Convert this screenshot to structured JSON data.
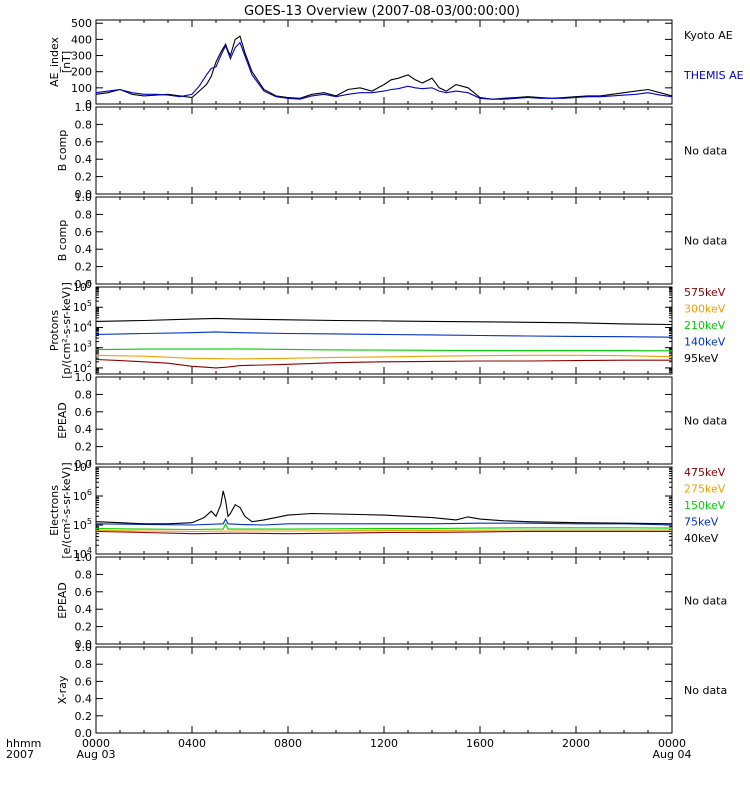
{
  "title": "GOES-13 Overview (2007-08-03/00:00:00)",
  "xaxis": {
    "corner_top": "hhmm",
    "corner_bottom": "2007",
    "ticks": [
      {
        "hour": 0,
        "label": "0000",
        "sub": "Aug 03"
      },
      {
        "hour": 4,
        "label": "0400",
        "sub": ""
      },
      {
        "hour": 8,
        "label": "0800",
        "sub": ""
      },
      {
        "hour": 12,
        "label": "1200",
        "sub": ""
      },
      {
        "hour": 16,
        "label": "1600",
        "sub": ""
      },
      {
        "hour": 20,
        "label": "2000",
        "sub": ""
      },
      {
        "hour": 24,
        "label": "0000",
        "sub": "Aug 04"
      }
    ],
    "range_hours": [
      0,
      24
    ]
  },
  "chart_data": [
    {
      "id": "ae",
      "type": "line",
      "ylabel": [
        "AE_index",
        "[nT]"
      ],
      "ylim": [
        0,
        520
      ],
      "yscale": "linear",
      "yticks": [
        0,
        100,
        200,
        300,
        400,
        500
      ],
      "series": [
        {
          "name": "Kyoto AE",
          "color": "#000000",
          "x": [
            0,
            0.5,
            1,
            1.5,
            2,
            2.5,
            3,
            3.5,
            4,
            4.3,
            4.6,
            4.8,
            5.0,
            5.2,
            5.4,
            5.5,
            5.6,
            5.8,
            6.0,
            6.2,
            6.5,
            7,
            7.5,
            8,
            8.5,
            9,
            9.5,
            10,
            10.5,
            11,
            11.5,
            12,
            12.3,
            12.6,
            13,
            13.3,
            13.6,
            14,
            14.3,
            14.6,
            15,
            15.5,
            16,
            16.5,
            17,
            17.5,
            18,
            18.5,
            19,
            19.5,
            20,
            20.5,
            21,
            21.5,
            22,
            22.5,
            23,
            23.5,
            24
          ],
          "values": [
            60,
            70,
            90,
            60,
            50,
            55,
            60,
            50,
            40,
            80,
            120,
            170,
            260,
            320,
            370,
            330,
            300,
            400,
            420,
            320,
            200,
            90,
            50,
            40,
            35,
            60,
            70,
            50,
            90,
            100,
            80,
            120,
            150,
            160,
            180,
            150,
            130,
            160,
            100,
            80,
            120,
            100,
            40,
            30,
            35,
            40,
            45,
            40,
            35,
            40,
            45,
            50,
            50,
            60,
            70,
            80,
            90,
            70,
            50
          ]
        },
        {
          "name": "THEMIS AE",
          "color": "#0000c8",
          "x": [
            0,
            0.5,
            1,
            1.5,
            2,
            2.5,
            3,
            3.5,
            4,
            4.3,
            4.6,
            4.8,
            5.0,
            5.2,
            5.4,
            5.5,
            5.6,
            5.8,
            6.0,
            6.2,
            6.5,
            7,
            7.5,
            8,
            8.5,
            9,
            9.5,
            10,
            10.5,
            11,
            11.5,
            12,
            12.3,
            12.6,
            13,
            13.3,
            13.6,
            14,
            14.3,
            14.6,
            15,
            15.5,
            16,
            16.5,
            17,
            17.5,
            18,
            18.5,
            19,
            19.5,
            20,
            20.5,
            21,
            21.5,
            22,
            22.5,
            23,
            23.5,
            24
          ],
          "values": [
            70,
            80,
            90,
            70,
            60,
            60,
            55,
            45,
            60,
            110,
            180,
            220,
            230,
            300,
            360,
            320,
            280,
            350,
            380,
            300,
            180,
            80,
            45,
            35,
            30,
            50,
            60,
            45,
            60,
            70,
            70,
            80,
            90,
            95,
            110,
            100,
            95,
            100,
            80,
            70,
            80,
            70,
            35,
            30,
            30,
            35,
            40,
            35,
            35,
            35,
            40,
            45,
            45,
            50,
            55,
            60,
            70,
            55,
            45
          ]
        }
      ],
      "status": "",
      "legend_entries": [
        "Kyoto AE",
        "THEMIS AE"
      ]
    },
    {
      "id": "bcomp1",
      "type": "line",
      "ylabel": [
        "B comp"
      ],
      "ylim": [
        0,
        1
      ],
      "yscale": "linear",
      "yticks": [
        0.0,
        0.2,
        0.4,
        0.6,
        0.8,
        1.0
      ],
      "series": [],
      "status": "No data"
    },
    {
      "id": "bcomp2",
      "type": "line",
      "ylabel": [
        "B comp"
      ],
      "ylim": [
        0,
        1
      ],
      "yscale": "linear",
      "yticks": [
        0.0,
        0.2,
        0.4,
        0.6,
        0.8,
        1.0
      ],
      "series": [],
      "status": "No data"
    },
    {
      "id": "protons",
      "type": "line",
      "ylabel": [
        "Protons",
        "[p/(cm²-s-sr-keV)]"
      ],
      "ylim": [
        50,
        1000000
      ],
      "yscale": "log",
      "yticks": [
        100,
        1000,
        10000,
        100000,
        1000000
      ],
      "series": [
        {
          "name": "575keV",
          "color": "#8b0000",
          "x": [
            0,
            1,
            2,
            3,
            4,
            4.5,
            5,
            5.5,
            6,
            7,
            8,
            10,
            12,
            14,
            16,
            18,
            20,
            22,
            24
          ],
          "values": [
            260,
            230,
            200,
            170,
            120,
            110,
            100,
            110,
            130,
            140,
            150,
            180,
            200,
            210,
            220,
            220,
            230,
            240,
            240
          ]
        },
        {
          "name": "300keV",
          "color": "#f0a000",
          "x": [
            0,
            2,
            4,
            6,
            8,
            10,
            12,
            14,
            16,
            18,
            20,
            22,
            24
          ],
          "values": [
            420,
            380,
            300,
            280,
            300,
            330,
            350,
            380,
            400,
            420,
            420,
            400,
            360
          ]
        },
        {
          "name": "210keV",
          "color": "#00d000",
          "x": [
            0,
            2,
            4,
            6,
            8,
            10,
            12,
            14,
            16,
            18,
            20,
            22,
            24
          ],
          "values": [
            800,
            850,
            850,
            870,
            820,
            780,
            760,
            740,
            720,
            720,
            720,
            720,
            700
          ]
        },
        {
          "name": "140keV",
          "color": "#0030c0",
          "x": [
            0,
            2,
            4,
            5,
            6,
            8,
            10,
            12,
            14,
            16,
            18,
            20,
            22,
            24
          ],
          "values": [
            4500,
            5000,
            5500,
            6000,
            5500,
            5000,
            4800,
            4500,
            4300,
            4000,
            3800,
            3600,
            3500,
            3300
          ]
        },
        {
          "name": "95keV",
          "color": "#000000",
          "x": [
            0,
            2,
            4,
            5,
            6,
            8,
            10,
            12,
            14,
            16,
            18,
            20,
            22,
            24
          ],
          "values": [
            20000,
            22000,
            26000,
            28000,
            26000,
            24000,
            22000,
            21000,
            20000,
            19000,
            18000,
            17000,
            15000,
            14000
          ]
        }
      ],
      "status": "",
      "legend_entries": [
        "575keV",
        "300keV",
        "210keV",
        "140keV",
        "95keV"
      ]
    },
    {
      "id": "epead1",
      "type": "line",
      "ylabel": [
        "EPEAD"
      ],
      "ylim": [
        0,
        1
      ],
      "yscale": "linear",
      "yticks": [
        0.0,
        0.2,
        0.4,
        0.6,
        0.8,
        1.0
      ],
      "series": [],
      "status": "No data"
    },
    {
      "id": "electrons",
      "type": "line",
      "ylabel": [
        "Electrons",
        "[e/(cm²-s-sr-keV)]"
      ],
      "ylim": [
        10000,
        10000000
      ],
      "yscale": "log",
      "yticks": [
        10000,
        100000,
        1000000,
        10000000
      ],
      "series": [
        {
          "name": "475keV",
          "color": "#8b0000",
          "x": [
            0,
            2,
            4,
            6,
            8,
            10,
            12,
            14,
            16,
            18,
            20,
            22,
            24
          ],
          "values": [
            60000,
            55000,
            50000,
            52000,
            50000,
            52000,
            55000,
            56000,
            58000,
            60000,
            60000,
            60000,
            60000
          ]
        },
        {
          "name": "275keV",
          "color": "#f0a000",
          "x": [
            0,
            2,
            4,
            6,
            8,
            10,
            12,
            14,
            16,
            18,
            20,
            22,
            24
          ],
          "values": [
            65000,
            62000,
            60000,
            62000,
            62000,
            63000,
            64000,
            65000,
            66000,
            68000,
            68000,
            68000,
            68000
          ]
        },
        {
          "name": "150keV",
          "color": "#00d000",
          "x": [
            0,
            2,
            4,
            5.3,
            5.4,
            5.5,
            6,
            8,
            10,
            12,
            14,
            16,
            18,
            20,
            22,
            24
          ],
          "values": [
            75000,
            72000,
            70000,
            72000,
            110000,
            72000,
            72000,
            72000,
            74000,
            75000,
            76000,
            78000,
            80000,
            80000,
            80000,
            78000
          ]
        },
        {
          "name": "75keV",
          "color": "#0030c0",
          "x": [
            0,
            2,
            4,
            5.3,
            5.4,
            5.5,
            6,
            7,
            8,
            10,
            12,
            14,
            16,
            18,
            20,
            22,
            24
          ],
          "values": [
            110000,
            105000,
            100000,
            110000,
            160000,
            110000,
            105000,
            100000,
            110000,
            110000,
            110000,
            110000,
            115000,
            115000,
            110000,
            110000,
            100000
          ]
        },
        {
          "name": "40keV",
          "color": "#000000",
          "x": [
            0,
            1,
            2,
            3,
            4,
            4.5,
            4.8,
            5.0,
            5.2,
            5.3,
            5.4,
            5.5,
            5.6,
            5.8,
            6.0,
            6.2,
            6.5,
            7,
            8,
            9,
            10,
            11,
            12,
            13,
            14,
            15,
            15.5,
            16,
            17,
            18,
            20,
            22,
            24
          ],
          "values": [
            130000,
            120000,
            110000,
            110000,
            120000,
            180000,
            300000,
            200000,
            500000,
            1500000,
            700000,
            200000,
            250000,
            500000,
            400000,
            200000,
            130000,
            150000,
            220000,
            250000,
            240000,
            230000,
            220000,
            200000,
            180000,
            150000,
            190000,
            160000,
            140000,
            130000,
            120000,
            115000,
            110000
          ]
        }
      ],
      "status": "",
      "legend_entries": [
        "475keV",
        "275keV",
        "150keV",
        "75keV",
        "40keV"
      ]
    },
    {
      "id": "epead2",
      "type": "line",
      "ylabel": [
        "EPEAD"
      ],
      "ylim": [
        0,
        1
      ],
      "yscale": "linear",
      "yticks": [
        0.0,
        0.2,
        0.4,
        0.6,
        0.8,
        1.0
      ],
      "series": [],
      "status": "No data"
    },
    {
      "id": "xray",
      "type": "line",
      "ylabel": [
        "X-ray"
      ],
      "ylim": [
        0,
        1
      ],
      "yscale": "linear",
      "yticks": [
        0.0,
        0.2,
        0.4,
        0.6,
        0.8,
        1.0
      ],
      "series": [],
      "status": "No data"
    }
  ]
}
